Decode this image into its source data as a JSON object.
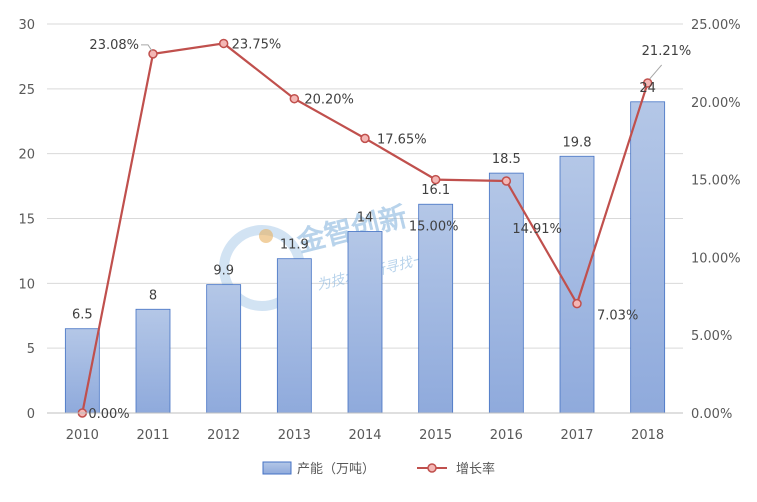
{
  "chart_data": {
    "type": "bar",
    "categories": [
      "2010",
      "2011",
      "2012",
      "2013",
      "2014",
      "2015",
      "2016",
      "2017",
      "2018"
    ],
    "series": [
      {
        "name": "产能（万吨）",
        "type": "bar",
        "axis": "left",
        "values": [
          6.5,
          8,
          9.9,
          11.9,
          14,
          16.1,
          18.5,
          19.8,
          24
        ],
        "labels": [
          "6.5",
          "8",
          "9.9",
          "11.9",
          "14",
          "16.1",
          "18.5",
          "19.8",
          "24"
        ]
      },
      {
        "name": "增长率",
        "type": "line",
        "axis": "right",
        "values": [
          0.0,
          23.08,
          23.75,
          20.2,
          17.65,
          15.0,
          14.91,
          7.03,
          21.21
        ],
        "labels": [
          "0.00%",
          "23.08%",
          "23.75%",
          "20.20%",
          "17.65%",
          "15.00%",
          "14.91%",
          "7.03%",
          "21.21%"
        ]
      }
    ],
    "y_left": {
      "ylim": [
        0,
        30
      ],
      "ticks": [
        "0",
        "5",
        "10",
        "15",
        "20",
        "25",
        "30"
      ]
    },
    "y_right": {
      "ylim": [
        0,
        25
      ],
      "ticks": [
        "0.00%",
        "5.00%",
        "10.00%",
        "15.00%",
        "20.00%",
        "25.00%"
      ]
    },
    "grid": true,
    "legend": "bottom",
    "colors": {
      "bar_fill_top": "#b4c7e7",
      "bar_fill_bottom": "#8faadc",
      "bar_stroke": "#4472c4",
      "line": "#c0504d",
      "marker_fill": "#f4b7b5"
    }
  },
  "watermark": {
    "title": "金智创新",
    "subtitle": "为技术创新寻找一个\"\""
  }
}
